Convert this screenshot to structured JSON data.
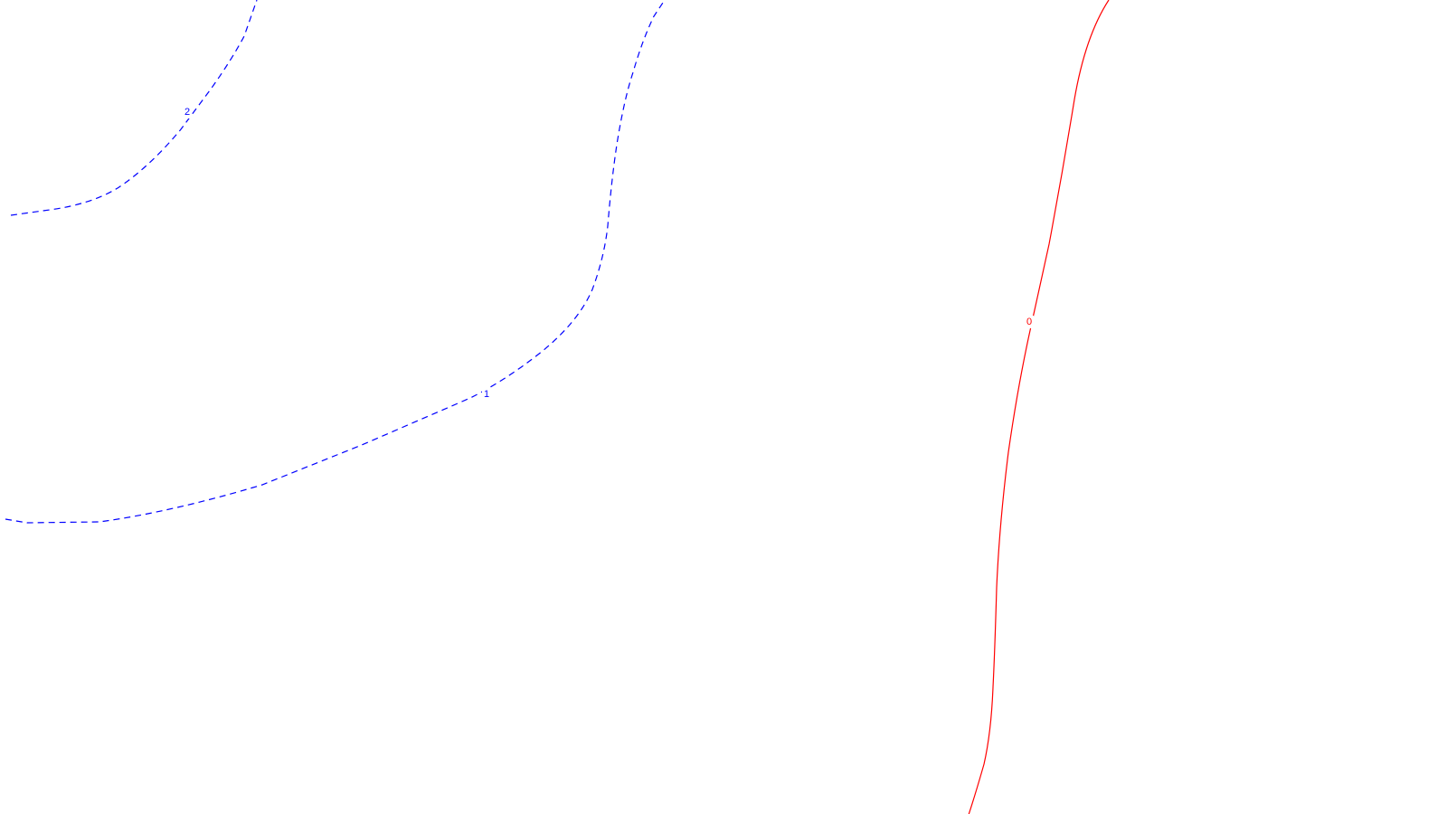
{
  "chart_data": {
    "type": "line",
    "title": "",
    "xlabel": "",
    "ylabel": "",
    "grid": false,
    "series": [
      {
        "level_label": "2",
        "color": "#0000ff",
        "line_style": "dashed"
      },
      {
        "level_label": "1",
        "color": "#0000ff",
        "line_style": "dashed"
      },
      {
        "level_label": "0",
        "color": "#ff0000",
        "line_style": "solid"
      }
    ]
  }
}
